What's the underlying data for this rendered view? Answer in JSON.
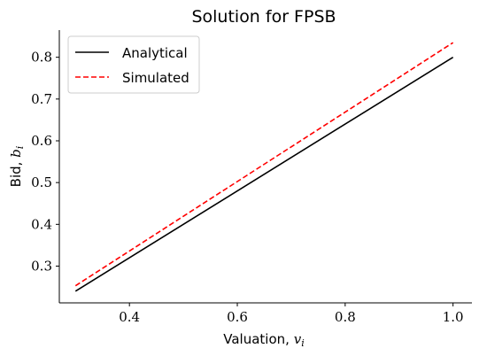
{
  "chart_data": {
    "type": "line",
    "title": "Solution for FPSB",
    "xlabel": "Valuation, ",
    "xlabel_var": "v",
    "xlabel_sub": "i",
    "ylabel": "Bid, ",
    "ylabel_var": "b",
    "ylabel_sub": "i",
    "xlim": [
      0.27,
      1.035
    ],
    "ylim": [
      0.212,
      0.865
    ],
    "xticks": [
      0.4,
      0.6,
      0.8,
      1.0
    ],
    "xtick_labels": [
      "0.4",
      "0.6",
      "0.8",
      "1.0"
    ],
    "yticks": [
      0.3,
      0.4,
      0.5,
      0.6,
      0.7,
      0.8
    ],
    "ytick_labels": [
      "0.3",
      "0.4",
      "0.5",
      "0.6",
      "0.7",
      "0.8"
    ],
    "legend_position": "top-left",
    "series": [
      {
        "name": "Analytical",
        "color": "#000000",
        "style": "solid",
        "x": [
          0.3,
          1.0
        ],
        "y": [
          0.24,
          0.8
        ]
      },
      {
        "name": "Simulated",
        "color": "#ff0000",
        "style": "dashed",
        "x": [
          0.3,
          1.0
        ],
        "y": [
          0.253,
          0.835
        ]
      }
    ]
  }
}
